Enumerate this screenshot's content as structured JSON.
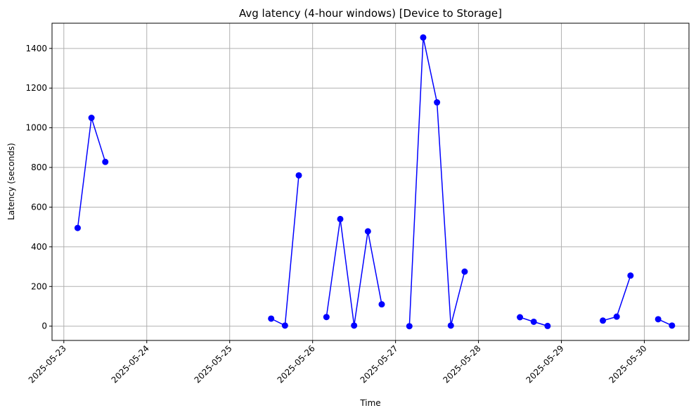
{
  "chart_data": {
    "type": "line",
    "title": "Avg latency (4-hour windows)  [Device to Storage]",
    "xlabel": "Time",
    "ylabel": "Latency (seconds)",
    "x_ticks": [
      "2025-05-23",
      "2025-05-24",
      "2025-05-25",
      "2025-05-26",
      "2025-05-27",
      "2025-05-28",
      "2025-05-29",
      "2025-05-30"
    ],
    "y_ticks": [
      0,
      200,
      400,
      600,
      800,
      1000,
      1200,
      1400
    ],
    "xlim": [
      "2025-05-22T20:35",
      "2025-05-30T12:55"
    ],
    "ylim": [
      -72,
      1527
    ],
    "grid": true,
    "colors": {
      "line": "#0000ff",
      "marker": "#0000ff"
    },
    "segments": [
      [
        {
          "t": "2025-05-23T04:00",
          "y": 495
        },
        {
          "t": "2025-05-23T08:00",
          "y": 1050
        },
        {
          "t": "2025-05-23T12:00",
          "y": 828
        }
      ],
      [
        {
          "t": "2025-05-25T12:00",
          "y": 38
        },
        {
          "t": "2025-05-25T16:00",
          "y": 3
        },
        {
          "t": "2025-05-25T20:00",
          "y": 760
        }
      ],
      [
        {
          "t": "2025-05-26T04:00",
          "y": 46
        },
        {
          "t": "2025-05-26T08:00",
          "y": 540
        },
        {
          "t": "2025-05-26T12:00",
          "y": 3
        },
        {
          "t": "2025-05-26T16:00",
          "y": 478
        },
        {
          "t": "2025-05-26T20:00",
          "y": 110
        }
      ],
      [
        {
          "t": "2025-05-27T04:00",
          "y": 0
        },
        {
          "t": "2025-05-27T08:00",
          "y": 1455
        },
        {
          "t": "2025-05-27T12:00",
          "y": 1128
        },
        {
          "t": "2025-05-27T16:00",
          "y": 3
        },
        {
          "t": "2025-05-27T20:00",
          "y": 275
        }
      ],
      [
        {
          "t": "2025-05-28T12:00",
          "y": 45
        },
        {
          "t": "2025-05-28T16:00",
          "y": 22
        },
        {
          "t": "2025-05-28T20:00",
          "y": 1
        }
      ],
      [
        {
          "t": "2025-05-29T12:00",
          "y": 28
        },
        {
          "t": "2025-05-29T16:00",
          "y": 48
        },
        {
          "t": "2025-05-29T20:00",
          "y": 255
        }
      ],
      [
        {
          "t": "2025-05-30T04:00",
          "y": 35
        },
        {
          "t": "2025-05-30T08:00",
          "y": 3
        }
      ]
    ]
  }
}
